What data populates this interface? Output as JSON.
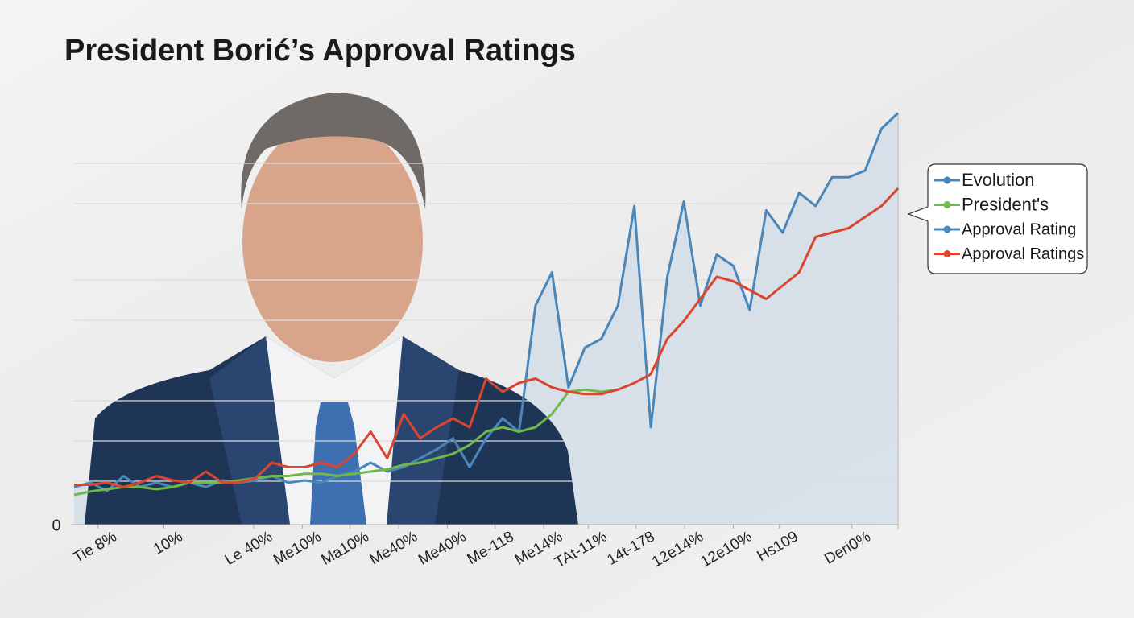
{
  "chart_data": {
    "type": "line",
    "title": "President Borić’s Approval Ratings",
    "x": [
      0,
      2,
      4,
      6,
      8,
      10,
      12,
      14,
      16,
      18,
      20,
      22,
      24,
      26,
      28,
      30,
      32,
      34,
      36,
      38,
      40,
      42,
      44,
      46,
      48,
      50,
      52,
      54,
      56,
      58,
      60,
      62,
      64,
      66,
      68,
      70,
      72,
      74,
      76,
      78,
      80,
      82,
      84,
      86,
      88,
      90,
      92,
      94,
      96,
      98,
      100
    ],
    "xlim": [
      0,
      100
    ],
    "xticks": [
      {
        "value": 2.9,
        "label": "Tie 8%"
      },
      {
        "value": 10.9,
        "label": "10%"
      },
      {
        "value": 21.8,
        "label": "Le 40%"
      },
      {
        "value": 27.7,
        "label": "Me10%"
      },
      {
        "value": 33.5,
        "label": "Ma10%"
      },
      {
        "value": 39.4,
        "label": "Me40%"
      },
      {
        "value": 45.3,
        "label": "Me40%"
      },
      {
        "value": 51.1,
        "label": "Me-118"
      },
      {
        "value": 57,
        "label": "Me14%"
      },
      {
        "value": 62.4,
        "label": "TAt-11%"
      },
      {
        "value": 68.2,
        "label": "14t-178"
      },
      {
        "value": 74.1,
        "label": "12e14%"
      },
      {
        "value": 80,
        "label": "12e10%"
      },
      {
        "value": 85.6,
        "label": "Hs109"
      },
      {
        "value": 94.4,
        "label": "Deri0%"
      }
    ],
    "ylim": [
      0,
      100
    ],
    "yticks": [
      0
    ],
    "series": [
      {
        "color": "#4a86b8",
        "values": [
          8.5,
          9.5,
          7.6,
          11,
          8.5,
          9.5,
          8.5,
          9.5,
          8.5,
          10,
          9.5,
          10,
          11,
          9.5,
          10,
          9.5,
          11,
          12,
          14,
          12,
          13,
          15,
          17,
          19.5,
          13,
          19.5,
          24,
          21,
          49.5,
          57,
          31,
          40,
          42,
          49.5,
          72,
          22,
          56,
          73,
          49.5,
          61,
          58.5,
          48.5,
          71,
          66,
          75,
          72,
          78.5,
          78.5,
          80,
          89.5,
          93
        ]
      },
      {
        "color": "#6fb84a",
        "values": [
          6.7,
          7.5,
          8,
          8.5,
          8.5,
          8,
          8.5,
          9.5,
          9.5,
          9.5,
          10,
          10.5,
          11,
          11,
          11.5,
          11.5,
          11,
          11.5,
          12,
          12.5,
          13.5,
          14,
          15,
          16,
          18,
          21,
          22,
          21,
          22,
          25,
          30,
          30.5,
          30,
          30.5,
          null,
          null,
          null,
          null,
          null,
          null,
          null,
          null,
          null,
          null,
          null,
          null,
          null,
          null,
          null,
          null,
          null
        ]
      },
      {
        "color": "#d9452f",
        "values": [
          9,
          9,
          9.5,
          8.5,
          9.5,
          11,
          10,
          9.5,
          12,
          9.5,
          9.5,
          10.5,
          14,
          13,
          13,
          14,
          13,
          16,
          21,
          15,
          25,
          19.5,
          22,
          24,
          22,
          33,
          30,
          32,
          33,
          31,
          30,
          29.5,
          29.5,
          30.5,
          32,
          34,
          42,
          46,
          51,
          56,
          55,
          53,
          51,
          54,
          57,
          65,
          66,
          67,
          69.5,
          72,
          76
        ]
      }
    ],
    "legend": [
      {
        "label": "Evolution",
        "color": "#4a86b8"
      },
      {
        "label": "President's",
        "color": "#6fb84a"
      },
      {
        "label": "Approval Rating",
        "color": "#4a86b8"
      },
      {
        "label": "Approval Ratings",
        "color": "#d9452f"
      }
    ]
  }
}
